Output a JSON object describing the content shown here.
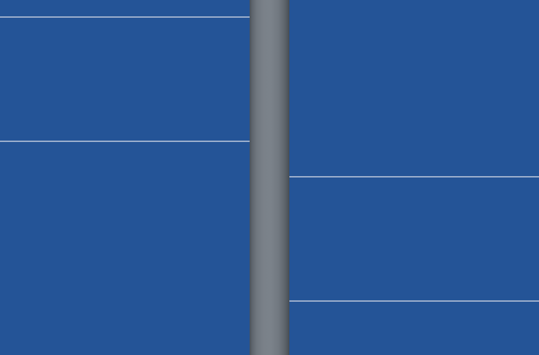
{
  "theme": {
    "panel_color": "#245497",
    "rule_color": "#b3c1d6"
  },
  "panels": {
    "left": {},
    "right": {}
  },
  "divider": {
    "icon": "vertical-split-handle-icon"
  }
}
